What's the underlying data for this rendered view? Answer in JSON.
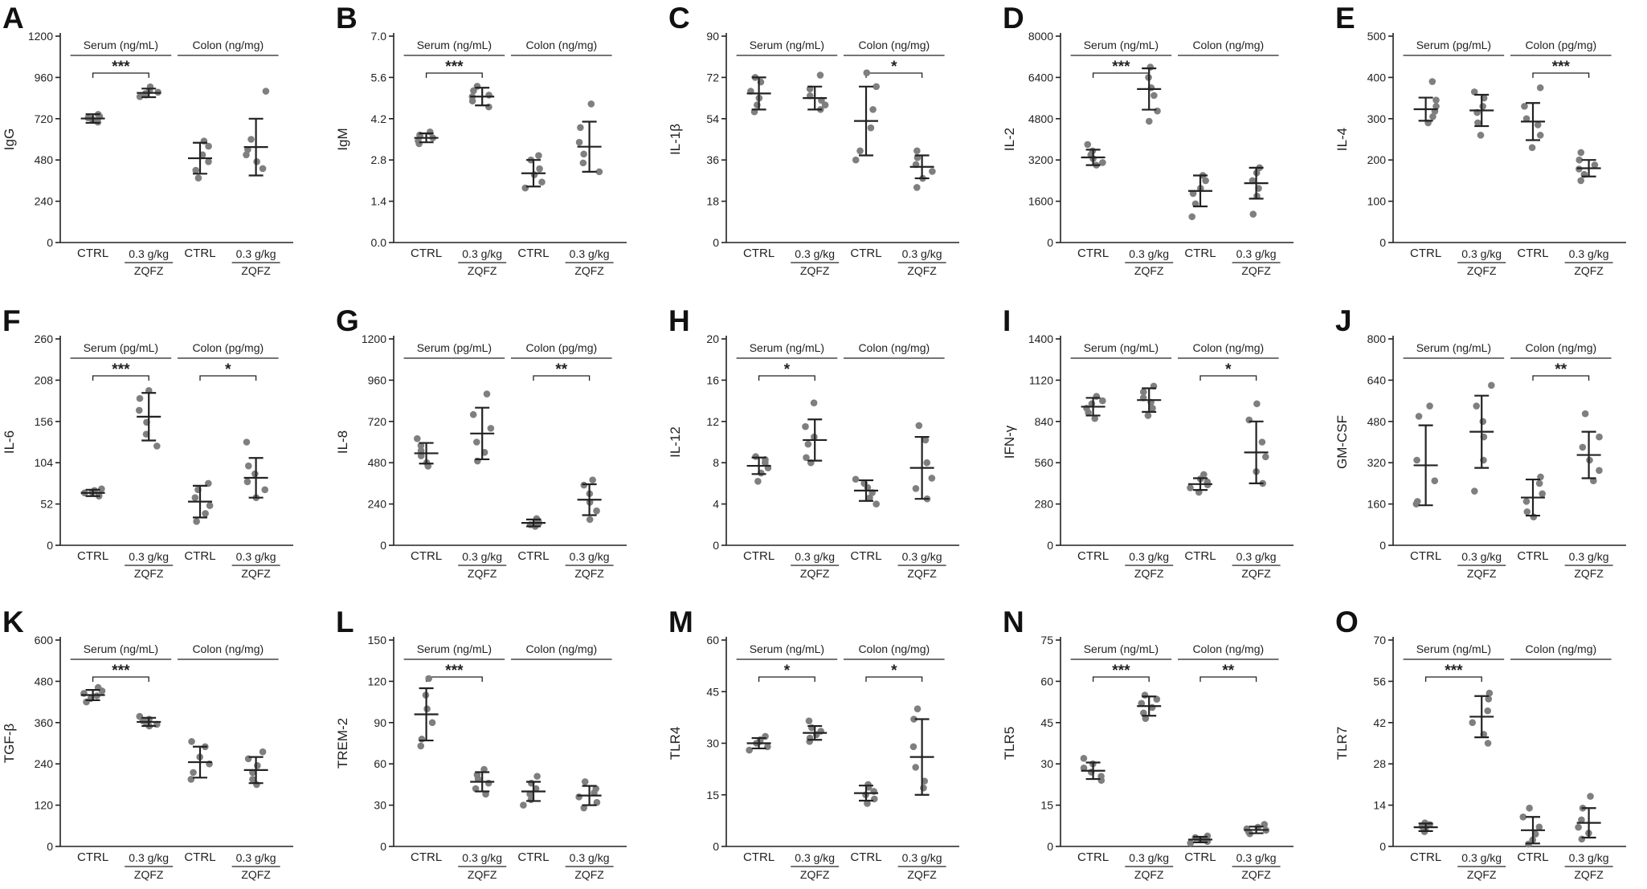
{
  "x_labels": {
    "ctrl": "CTRL",
    "dose": "0.3 g/kg",
    "drug": "ZQFZ"
  },
  "chart_data": [
    {
      "type": "scatter",
      "panel": "A",
      "ylabel": "IgG",
      "ylim": [
        0,
        1200
      ],
      "yticks": [
        0,
        240,
        480,
        720,
        960,
        1200
      ],
      "groups": [
        {
          "label": "Serum (ng/mL)",
          "sig": "***"
        },
        {
          "label": "Colon (ng/mg)",
          "sig": ""
        }
      ],
      "conditions": [
        {
          "mean": 721,
          "sd": 25,
          "points": [
            700,
            710,
            718,
            725,
            733,
            745
          ]
        },
        {
          "mean": 870,
          "sd": 25,
          "points": [
            848,
            858,
            866,
            874,
            884,
            905
          ]
        },
        {
          "mean": 490,
          "sd": 90,
          "points": [
            375,
            420,
            470,
            510,
            560,
            590
          ]
        },
        {
          "mean": 555,
          "sd": 165,
          "points": [
            430,
            470,
            510,
            540,
            600,
            880
          ]
        }
      ]
    },
    {
      "type": "scatter",
      "panel": "B",
      "ylabel": "IgM",
      "ylim": [
        0,
        7
      ],
      "yticks": [
        "0.0",
        "1.4",
        "2.8",
        "4.2",
        "5.6",
        "7.0"
      ],
      "groups": [
        {
          "label": "Serum (ng/mL)",
          "sig": "***"
        },
        {
          "label": "Colon (ng/mg)",
          "sig": ""
        }
      ],
      "conditions": [
        {
          "mean": 3.55,
          "sd": 0.15,
          "points": [
            3.35,
            3.45,
            3.55,
            3.6,
            3.65,
            3.75
          ]
        },
        {
          "mean": 4.95,
          "sd": 0.3,
          "points": [
            4.6,
            4.8,
            4.95,
            5.0,
            5.15,
            5.3
          ]
        },
        {
          "mean": 2.35,
          "sd": 0.45,
          "points": [
            1.85,
            2.05,
            2.3,
            2.5,
            2.8,
            2.95
          ]
        },
        {
          "mean": 3.25,
          "sd": 0.85,
          "points": [
            2.4,
            2.7,
            3.0,
            3.4,
            3.9,
            4.7
          ]
        }
      ]
    },
    {
      "type": "scatter",
      "panel": "C",
      "ylabel": "IL-1β",
      "ylim": [
        0,
        90
      ],
      "yticks": [
        0,
        18,
        36,
        54,
        72,
        90
      ],
      "groups": [
        {
          "label": "Serum (ng/mL)",
          "sig": ""
        },
        {
          "label": "Colon (ng/mg)",
          "sig": "*"
        }
      ],
      "conditions": [
        {
          "mean": 65,
          "sd": 7,
          "points": [
            57,
            60,
            63,
            66,
            70,
            72
          ]
        },
        {
          "mean": 63,
          "sd": 5,
          "points": [
            58,
            60,
            62,
            64,
            67,
            73
          ]
        },
        {
          "mean": 53,
          "sd": 15,
          "points": [
            36,
            40,
            50,
            58,
            68,
            74
          ]
        },
        {
          "mean": 33,
          "sd": 5,
          "points": [
            24,
            28,
            31,
            34,
            37,
            40
          ]
        }
      ]
    },
    {
      "type": "scatter",
      "panel": "D",
      "ylabel": "IL-2",
      "ylim": [
        0,
        8000
      ],
      "yticks": [
        0,
        1600,
        3200,
        4800,
        6400,
        8000
      ],
      "groups": [
        {
          "label": "Serum (ng/mL)",
          "sig": "***"
        },
        {
          "label": "Colon (ng/mg)",
          "sig": ""
        }
      ],
      "conditions": [
        {
          "mean": 3300,
          "sd": 300,
          "points": [
            3000,
            3100,
            3250,
            3400,
            3550,
            3800
          ]
        },
        {
          "mean": 5950,
          "sd": 800,
          "points": [
            4700,
            5100,
            5700,
            6000,
            6400,
            6800
          ]
        },
        {
          "mean": 2000,
          "sd": 600,
          "points": [
            1000,
            1500,
            1900,
            2100,
            2400,
            2600
          ]
        },
        {
          "mean": 2300,
          "sd": 600,
          "points": [
            1100,
            1800,
            2100,
            2400,
            2700,
            2900
          ]
        }
      ]
    },
    {
      "type": "scatter",
      "panel": "E",
      "ylabel": "IL-4",
      "ylim": [
        0,
        500
      ],
      "yticks": [
        0,
        100,
        200,
        300,
        400,
        500
      ],
      "groups": [
        {
          "label": "Serum (pg/mL)",
          "sig": ""
        },
        {
          "label": "Colon (pg/mg)",
          "sig": "***"
        }
      ],
      "conditions": [
        {
          "mean": 323,
          "sd": 28,
          "points": [
            290,
            305,
            318,
            330,
            345,
            390
          ]
        },
        {
          "mean": 320,
          "sd": 38,
          "points": [
            260,
            290,
            315,
            330,
            350,
            365
          ]
        },
        {
          "mean": 293,
          "sd": 45,
          "points": [
            230,
            260,
            285,
            300,
            330,
            375
          ]
        },
        {
          "mean": 180,
          "sd": 20,
          "points": [
            150,
            165,
            178,
            188,
            200,
            218
          ]
        }
      ]
    },
    {
      "type": "scatter",
      "panel": "F",
      "ylabel": "IL-6",
      "ylim": [
        0,
        260
      ],
      "yticks": [
        0,
        52,
        104,
        156,
        208,
        260
      ],
      "groups": [
        {
          "label": "Serum (pg/mL)",
          "sig": "***"
        },
        {
          "label": "Colon (pg/mg)",
          "sig": "*"
        }
      ],
      "conditions": [
        {
          "mean": 66,
          "sd": 4,
          "points": [
            62,
            64,
            66,
            67,
            69,
            71
          ]
        },
        {
          "mean": 162,
          "sd": 30,
          "points": [
            125,
            140,
            155,
            170,
            185,
            195
          ]
        },
        {
          "mean": 55,
          "sd": 20,
          "points": [
            30,
            40,
            50,
            60,
            70,
            78
          ]
        },
        {
          "mean": 85,
          "sd": 25,
          "points": [
            60,
            70,
            80,
            90,
            100,
            130
          ]
        }
      ]
    },
    {
      "type": "scatter",
      "panel": "G",
      "ylabel": "IL-8",
      "ylim": [
        0,
        1200
      ],
      "yticks": [
        0,
        240,
        480,
        720,
        960,
        1200
      ],
      "groups": [
        {
          "label": "Serum (pg/mL)",
          "sig": ""
        },
        {
          "label": "Colon (pg/mg)",
          "sig": "**"
        }
      ],
      "conditions": [
        {
          "mean": 535,
          "sd": 60,
          "points": [
            460,
            480,
            520,
            550,
            580,
            620
          ]
        },
        {
          "mean": 650,
          "sd": 150,
          "points": [
            490,
            540,
            600,
            680,
            760,
            880
          ]
        },
        {
          "mean": 130,
          "sd": 20,
          "points": [
            110,
            120,
            128,
            135,
            142,
            155
          ]
        },
        {
          "mean": 265,
          "sd": 90,
          "points": [
            150,
            200,
            250,
            300,
            350,
            380
          ]
        }
      ]
    },
    {
      "type": "scatter",
      "panel": "H",
      "ylabel": "IL-12",
      "ylim": [
        0,
        20
      ],
      "yticks": [
        0,
        4,
        8,
        12,
        16,
        20
      ],
      "groups": [
        {
          "label": "Serum (ng/mL)",
          "sig": "*"
        },
        {
          "label": "Colon (ng/mg)",
          "sig": ""
        }
      ],
      "conditions": [
        {
          "mean": 7.7,
          "sd": 0.8,
          "points": [
            6.2,
            7.0,
            7.5,
            8.0,
            8.3,
            8.6
          ]
        },
        {
          "mean": 10.2,
          "sd": 2.0,
          "points": [
            8.0,
            8.5,
            9.8,
            10.5,
            11.5,
            13.8
          ]
        },
        {
          "mean": 5.3,
          "sd": 1.0,
          "points": [
            4.0,
            4.6,
            5.1,
            5.6,
            6.0,
            6.4
          ]
        },
        {
          "mean": 7.5,
          "sd": 3.0,
          "points": [
            4.5,
            5.5,
            6.5,
            8.0,
            10.2,
            11.6
          ]
        }
      ]
    },
    {
      "type": "scatter",
      "panel": "I",
      "ylabel": "IFN-γ",
      "ylim": [
        0,
        1400
      ],
      "yticks": [
        0,
        280,
        560,
        840,
        1120,
        1400
      ],
      "groups": [
        {
          "label": "Serum (ng/mL)",
          "sig": ""
        },
        {
          "label": "Colon (ng/mg)",
          "sig": "*"
        }
      ],
      "conditions": [
        {
          "mean": 940,
          "sd": 60,
          "points": [
            860,
            900,
            930,
            960,
            980,
            1010
          ]
        },
        {
          "mean": 985,
          "sd": 80,
          "points": [
            880,
            930,
            970,
            1000,
            1040,
            1080
          ]
        },
        {
          "mean": 415,
          "sd": 40,
          "points": [
            360,
            390,
            410,
            430,
            450,
            480
          ]
        },
        {
          "mean": 630,
          "sd": 210,
          "points": [
            420,
            500,
            600,
            700,
            850,
            960
          ]
        }
      ]
    },
    {
      "type": "scatter",
      "panel": "J",
      "ylabel": "GM-CSF",
      "ylim": [
        0,
        800
      ],
      "yticks": [
        0,
        160,
        320,
        480,
        640,
        800
      ],
      "groups": [
        {
          "label": "Serum (ng/mL)",
          "sig": ""
        },
        {
          "label": "Colon (ng/mg)",
          "sig": "**"
        }
      ],
      "conditions": [
        {
          "mean": 310,
          "sd": 155,
          "points": [
            160,
            170,
            250,
            330,
            500,
            540
          ]
        },
        {
          "mean": 440,
          "sd": 140,
          "points": [
            210,
            330,
            420,
            480,
            540,
            620
          ]
        },
        {
          "mean": 185,
          "sd": 70,
          "points": [
            110,
            130,
            170,
            200,
            240,
            265
          ]
        },
        {
          "mean": 350,
          "sd": 90,
          "points": [
            250,
            290,
            330,
            380,
            420,
            510
          ]
        }
      ]
    },
    {
      "type": "scatter",
      "panel": "K",
      "ylabel": "TGF-β",
      "ylim": [
        0,
        600
      ],
      "yticks": [
        0,
        120,
        240,
        360,
        480,
        600
      ],
      "groups": [
        {
          "label": "Serum (ng/mL)",
          "sig": "***"
        },
        {
          "label": "Colon (ng/mg)",
          "sig": ""
        }
      ],
      "conditions": [
        {
          "mean": 440,
          "sd": 15,
          "points": [
            420,
            430,
            438,
            445,
            452,
            462
          ]
        },
        {
          "mean": 362,
          "sd": 12,
          "points": [
            350,
            355,
            360,
            365,
            370,
            378
          ]
        },
        {
          "mean": 245,
          "sd": 45,
          "points": [
            195,
            215,
            240,
            260,
            290,
            305
          ]
        },
        {
          "mean": 222,
          "sd": 38,
          "points": [
            180,
            195,
            215,
            235,
            255,
            275
          ]
        }
      ]
    },
    {
      "type": "scatter",
      "panel": "L",
      "ylabel": "TREM-2",
      "ylim": [
        0,
        150
      ],
      "yticks": [
        0,
        30,
        60,
        90,
        120,
        150
      ],
      "groups": [
        {
          "label": "Serum (ng/mL)",
          "sig": "***"
        },
        {
          "label": "Colon (ng/mg)",
          "sig": ""
        }
      ],
      "conditions": [
        {
          "mean": 96,
          "sd": 19,
          "points": [
            73,
            78,
            90,
            100,
            110,
            122
          ]
        },
        {
          "mean": 47,
          "sd": 7,
          "points": [
            38,
            42,
            46,
            49,
            52,
            56
          ]
        },
        {
          "mean": 40,
          "sd": 7,
          "points": [
            30,
            34,
            38,
            42,
            46,
            51
          ]
        },
        {
          "mean": 37,
          "sd": 7,
          "points": [
            28,
            32,
            36,
            39,
            42,
            47
          ]
        }
      ]
    },
    {
      "type": "scatter",
      "panel": "M",
      "ylabel": "TLR4",
      "ylim": [
        0,
        60
      ],
      "yticks": [
        0,
        15,
        30,
        45,
        60
      ],
      "groups": [
        {
          "label": "Serum (ng/mL)",
          "sig": "*"
        },
        {
          "label": "Colon (ng/mg)",
          "sig": "*"
        }
      ],
      "conditions": [
        {
          "mean": 30,
          "sd": 1.5,
          "points": [
            28,
            29,
            30,
            30.5,
            31,
            32
          ]
        },
        {
          "mean": 33,
          "sd": 2,
          "points": [
            30.5,
            31.5,
            32.5,
            33.5,
            34.5,
            36.5
          ]
        },
        {
          "mean": 15.5,
          "sd": 2.2,
          "points": [
            12.5,
            13.8,
            15,
            16,
            17.2,
            18
          ]
        },
        {
          "mean": 26,
          "sd": 11,
          "points": [
            17,
            19,
            23,
            29,
            37,
            40
          ]
        }
      ]
    },
    {
      "type": "scatter",
      "panel": "N",
      "ylabel": "TLR5",
      "ylim": [
        0,
        75
      ],
      "yticks": [
        0,
        15,
        30,
        45,
        60,
        75
      ],
      "groups": [
        {
          "label": "Serum (ng/mL)",
          "sig": "***"
        },
        {
          "label": "Colon (ng/mg)",
          "sig": "**"
        }
      ],
      "conditions": [
        {
          "mean": 27.5,
          "sd": 3,
          "points": [
            24,
            25.5,
            27,
            28.5,
            30,
            32
          ]
        },
        {
          "mean": 51,
          "sd": 3.5,
          "points": [
            46.5,
            48.5,
            50.5,
            52,
            53.5,
            55
          ]
        },
        {
          "mean": 2.5,
          "sd": 1,
          "points": [
            1.2,
            1.8,
            2.4,
            2.8,
            3.2,
            3.8
          ]
        },
        {
          "mean": 6,
          "sd": 1.2,
          "points": [
            4.6,
            5.3,
            5.9,
            6.4,
            7,
            8
          ]
        }
      ]
    },
    {
      "type": "scatter",
      "panel": "O",
      "ylabel": "TLR7",
      "ylim": [
        0,
        70
      ],
      "yticks": [
        0,
        14,
        28,
        42,
        56,
        70
      ],
      "groups": [
        {
          "label": "Serum (ng/mL)",
          "sig": "***"
        },
        {
          "label": "Colon (ng/mg)",
          "sig": ""
        }
      ],
      "conditions": [
        {
          "mean": 6.5,
          "sd": 1.3,
          "points": [
            5,
            5.8,
            6.4,
            6.8,
            7.4,
            8
          ]
        },
        {
          "mean": 44,
          "sd": 7,
          "points": [
            35,
            38,
            42,
            46,
            50,
            52
          ]
        },
        {
          "mean": 5.5,
          "sd": 4.5,
          "points": [
            0.8,
            2.2,
            4.2,
            6.6,
            10,
            13
          ]
        },
        {
          "mean": 8,
          "sd": 5,
          "points": [
            2.5,
            4.5,
            6.5,
            9,
            13,
            17
          ]
        }
      ]
    }
  ]
}
